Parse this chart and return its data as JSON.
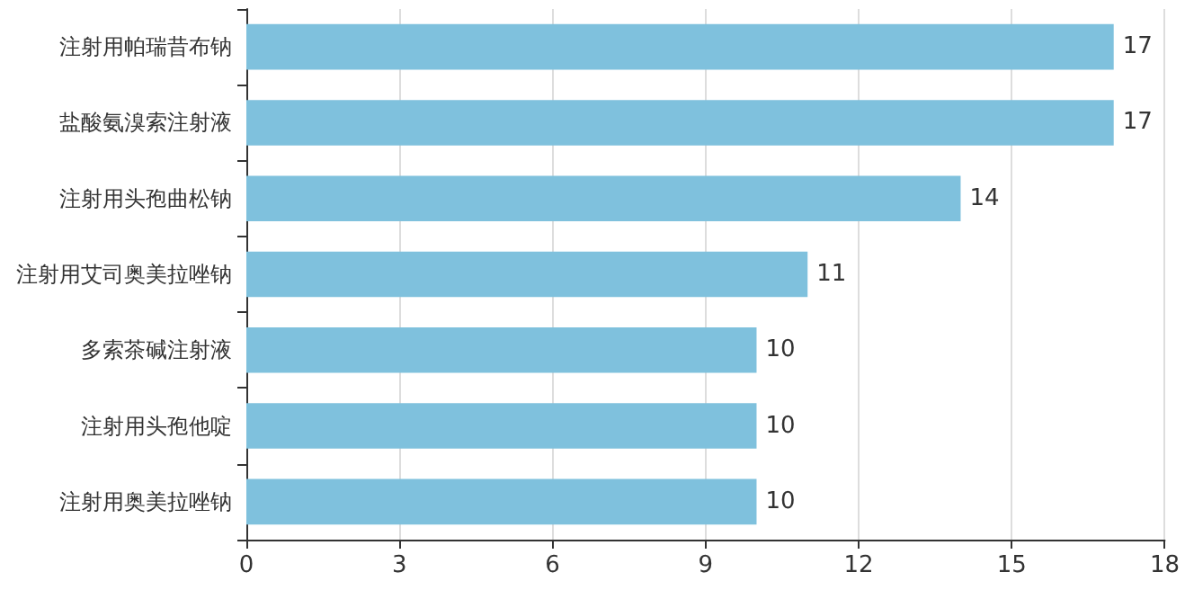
{
  "chart_data": {
    "type": "bar",
    "orientation": "horizontal",
    "categories": [
      "注射用帕瑞昔布钠",
      "盐酸氨溴索注射液",
      "注射用头孢曲松钠",
      "注射用艾司奥美拉唑钠",
      "多索茶碱注射液",
      "注射用头孢他啶",
      "注射用奥美拉唑钠"
    ],
    "values": [
      17,
      17,
      14,
      11,
      10,
      10,
      10
    ],
    "color": "#7fc1dd",
    "xlim": [
      0,
      18
    ],
    "xticks": [
      0,
      3,
      6,
      9,
      12,
      15,
      18
    ],
    "grid": "x",
    "data_labels": true
  }
}
